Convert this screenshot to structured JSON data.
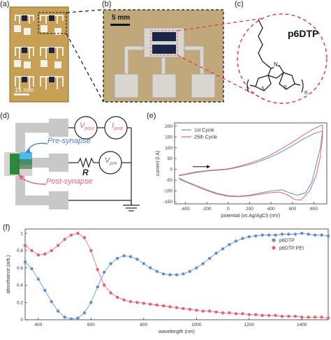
{
  "panel_labels": {
    "a": "(a)",
    "b": "(b)",
    "c": "(c)",
    "d": "(d)",
    "e": "(e)",
    "f": "(f)"
  },
  "scale_a": "15 mm",
  "scale_b": "5 mm",
  "molecule": {
    "name": "p6DTP",
    "atom_n": "N",
    "atom_s1": "S",
    "atom_s2": "S",
    "sub_n": "n"
  },
  "circuit": {
    "v_post": "V",
    "v_post_sub": "post",
    "i_post": "I",
    "i_post_sub": "post",
    "v_pre": "V",
    "v_pre_sub": "pre",
    "resistor": "R",
    "pre_synapse": "Pre-synapse",
    "post_synapse": "Post-synapse"
  },
  "colors": {
    "blue": "#5b8fd0",
    "red": "#e8606e",
    "panel_bg_a": "#c9a65e"
  },
  "chart_data": [
    {
      "type": "line",
      "xlabel": "potential (vs Ag/AgCl) (mV)",
      "ylabel": "current (I A)",
      "xlim": [
        -500,
        920
      ],
      "ylim": [
        -160,
        215
      ],
      "xticks": [
        -400,
        -200,
        0,
        200,
        400,
        600,
        800
      ],
      "yticks": [
        -150,
        -100,
        -50,
        0,
        50,
        100,
        150,
        200
      ],
      "legend_position": "top-left",
      "grid": false,
      "series": [
        {
          "name": "1st Cycle",
          "color": "#5b8fd0",
          "forward": [
            [
              -460,
              -30
            ],
            [
              -300,
              -15
            ],
            [
              -200,
              -8
            ],
            [
              -100,
              -4
            ],
            [
              0,
              0
            ],
            [
              100,
              10
            ],
            [
              200,
              22
            ],
            [
              300,
              38
            ],
            [
              400,
              58
            ],
            [
              500,
              82
            ],
            [
              600,
              110
            ],
            [
              700,
              140
            ],
            [
              800,
              165
            ],
            [
              880,
              178
            ]
          ],
          "reverse": [
            [
              880,
              178
            ],
            [
              860,
              100
            ],
            [
              820,
              20
            ],
            [
              780,
              -60
            ],
            [
              720,
              -110
            ],
            [
              640,
              -120
            ],
            [
              580,
              -110
            ],
            [
              500,
              -95
            ],
            [
              400,
              -100
            ],
            [
              300,
              -110
            ],
            [
              200,
              -120
            ],
            [
              100,
              -125
            ],
            [
              0,
              -122
            ],
            [
              -100,
              -112
            ],
            [
              -200,
              -95
            ],
            [
              -300,
              -75
            ],
            [
              -400,
              -55
            ],
            [
              -460,
              -40
            ]
          ]
        },
        {
          "name": "25th Cycle",
          "color": "#e8606e",
          "forward": [
            [
              -460,
              -28
            ],
            [
              -300,
              -12
            ],
            [
              -200,
              -6
            ],
            [
              -100,
              -2
            ],
            [
              0,
              2
            ],
            [
              100,
              14
            ],
            [
              200,
              28
            ],
            [
              300,
              45
            ],
            [
              400,
              68
            ],
            [
              500,
              95
            ],
            [
              600,
              125
            ],
            [
              700,
              158
            ],
            [
              800,
              188
            ],
            [
              880,
              205
            ]
          ],
          "reverse": [
            [
              880,
              205
            ],
            [
              880,
              150
            ],
            [
              860,
              60
            ],
            [
              820,
              -30
            ],
            [
              760,
              -100
            ],
            [
              680,
              -142
            ],
            [
              620,
              -140
            ],
            [
              560,
              -120
            ],
            [
              480,
              -105
            ],
            [
              400,
              -108
            ],
            [
              300,
              -115
            ],
            [
              200,
              -123
            ],
            [
              100,
              -127
            ],
            [
              0,
              -125
            ],
            [
              -100,
              -115
            ],
            [
              -200,
              -98
            ],
            [
              -300,
              -78
            ],
            [
              -400,
              -58
            ],
            [
              -460,
              -45
            ]
          ]
        }
      ]
    },
    {
      "type": "line",
      "xlabel": "wavelength (nm)",
      "ylabel": "absorbance (arb.)",
      "xlim": [
        350,
        1500
      ],
      "ylim": [
        0,
        1.05
      ],
      "xticks": [
        400,
        600,
        800,
        1000,
        1200,
        1400
      ],
      "yticks": [
        0,
        0.2,
        0.4,
        0.6,
        0.8,
        1
      ],
      "legend_position": "top-right",
      "grid": false,
      "series": [
        {
          "name": "p6DTP",
          "color": "#5b8fd0",
          "x": [
            350,
            375,
            400,
            425,
            450,
            475,
            500,
            525,
            550,
            575,
            600,
            625,
            650,
            675,
            700,
            725,
            750,
            775,
            800,
            825,
            850,
            875,
            900,
            925,
            950,
            975,
            1000,
            1025,
            1050,
            1075,
            1100,
            1125,
            1150,
            1175,
            1200,
            1225,
            1250,
            1275,
            1300,
            1325,
            1350,
            1375,
            1400,
            1425,
            1450,
            1475,
            1500
          ],
          "y": [
            0.67,
            0.59,
            0.47,
            0.34,
            0.21,
            0.1,
            0.03,
            0.01,
            0.02,
            0.08,
            0.2,
            0.38,
            0.55,
            0.65,
            0.71,
            0.74,
            0.73,
            0.7,
            0.65,
            0.6,
            0.56,
            0.53,
            0.52,
            0.52,
            0.53,
            0.56,
            0.6,
            0.65,
            0.71,
            0.77,
            0.82,
            0.87,
            0.91,
            0.94,
            0.96,
            0.97,
            0.98,
            0.98,
            0.98,
            0.99,
            0.99,
            0.99,
            1.0,
            0.99,
            0.98,
            0.98,
            0.97
          ]
        },
        {
          "name": "p6DTP:PEI",
          "color": "#e8606e",
          "x": [
            350,
            375,
            400,
            425,
            450,
            475,
            500,
            525,
            550,
            575,
            600,
            625,
            650,
            675,
            700,
            725,
            750,
            775,
            800,
            825,
            850,
            875,
            900,
            925,
            950,
            975,
            1000,
            1025,
            1050,
            1075,
            1100,
            1125,
            1150,
            1175,
            1200,
            1225,
            1250,
            1275,
            1300,
            1325,
            1350,
            1375,
            1400,
            1425,
            1450,
            1475,
            1500
          ],
          "y": [
            0.86,
            0.8,
            0.75,
            0.76,
            0.8,
            0.86,
            0.93,
            0.98,
            1.0,
            0.95,
            0.8,
            0.58,
            0.4,
            0.31,
            0.26,
            0.23,
            0.21,
            0.2,
            0.19,
            0.18,
            0.17,
            0.16,
            0.15,
            0.14,
            0.13,
            0.12,
            0.11,
            0.1,
            0.1,
            0.09,
            0.08,
            0.08,
            0.07,
            0.07,
            0.06,
            0.06,
            0.05,
            0.05,
            0.05,
            0.04,
            0.04,
            0.04,
            0.03,
            0.03,
            0.03,
            0.03,
            0.02
          ]
        }
      ]
    }
  ]
}
